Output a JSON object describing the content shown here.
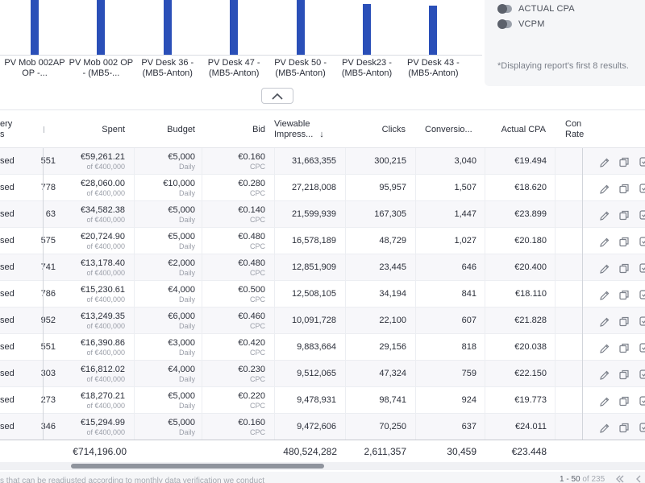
{
  "chart": {
    "bars": [
      {
        "label": "PV Mob 002AP OP -...",
        "value": 1.0
      },
      {
        "label": "PV Mob 002 OP - (MB5-...",
        "value": 1.0
      },
      {
        "label": "PV Desk 36 - (MB5-Anton)",
        "value": 1.0
      },
      {
        "label": "PV Desk 47 - (MB5-Anton)",
        "value": 1.0
      },
      {
        "label": "PV Desk 50 - (MB5-Anton)",
        "value": 1.0
      },
      {
        "label": "PV Desk23 - (MB5-Anton)",
        "value": 0.93
      },
      {
        "label": "PV Desk 43 - (MB5-Anton)",
        "value": 0.9
      }
    ],
    "bar_color": "#2a4fb8"
  },
  "side_panel": {
    "toggles": [
      {
        "label": "ACTUAL CPA",
        "on": false
      },
      {
        "label": "VCPM",
        "on": false
      }
    ],
    "note": "*Displaying report's first 8 results."
  },
  "table": {
    "headers": {
      "delivery": "ery\ns",
      "spent": "Spent",
      "budget": "Budget",
      "bid": "Bid",
      "viewable_line1": "Viewable",
      "viewable_line2": "Impress...",
      "sort_arrow": "↓",
      "clicks": "Clicks",
      "conversions": "Conversio...",
      "actual_cpa": "Actual CPA",
      "conv_rate_line1": "Con",
      "conv_rate_line2": "Rate"
    },
    "rows": [
      {
        "status": "sed",
        "id": "551",
        "spent": "€59,261.21",
        "spent_of": "of €400,000",
        "budget": "€5,000",
        "budget_type": "Daily",
        "bid": "€0.160",
        "bid_type": "CPC",
        "viewable": "31,663,355",
        "clicks": "300,215",
        "conversions": "3,040",
        "cpa": "€19.494"
      },
      {
        "status": "sed",
        "id": "778",
        "spent": "€28,060.00",
        "spent_of": "of €400,000",
        "budget": "€10,000",
        "budget_type": "Daily",
        "bid": "€0.280",
        "bid_type": "CPC",
        "viewable": "27,218,008",
        "clicks": "95,957",
        "conversions": "1,507",
        "cpa": "€18.620"
      },
      {
        "status": "sed",
        "id": "63",
        "spent": "€34,582.38",
        "spent_of": "of €400,000",
        "budget": "€5,000",
        "budget_type": "Daily",
        "bid": "€0.140",
        "bid_type": "CPC",
        "viewable": "21,599,939",
        "clicks": "167,305",
        "conversions": "1,447",
        "cpa": "€23.899"
      },
      {
        "status": "sed",
        "id": "575",
        "spent": "€20,724.90",
        "spent_of": "of €400,000",
        "budget": "€5,000",
        "budget_type": "Daily",
        "bid": "€0.480",
        "bid_type": "CPC",
        "viewable": "16,578,189",
        "clicks": "48,729",
        "conversions": "1,027",
        "cpa": "€20.180"
      },
      {
        "status": "sed",
        "id": "741",
        "spent": "€13,178.40",
        "spent_of": "of €400,000",
        "budget": "€2,000",
        "budget_type": "Daily",
        "bid": "€0.480",
        "bid_type": "CPC",
        "viewable": "12,851,909",
        "clicks": "23,445",
        "conversions": "646",
        "cpa": "€20.400"
      },
      {
        "status": "sed",
        "id": "786",
        "spent": "€15,230.61",
        "spent_of": "of €400,000",
        "budget": "€4,000",
        "budget_type": "Daily",
        "bid": "€0.500",
        "bid_type": "CPC",
        "viewable": "12,508,105",
        "clicks": "34,194",
        "conversions": "841",
        "cpa": "€18.110"
      },
      {
        "status": "sed",
        "id": "952",
        "spent": "€13,249.35",
        "spent_of": "of €400,000",
        "budget": "€6,000",
        "budget_type": "Daily",
        "bid": "€0.460",
        "bid_type": "CPC",
        "viewable": "10,091,728",
        "clicks": "22,100",
        "conversions": "607",
        "cpa": "€21.828"
      },
      {
        "status": "sed",
        "id": "551",
        "spent": "€16,390.86",
        "spent_of": "of €400,000",
        "budget": "€3,000",
        "budget_type": "Daily",
        "bid": "€0.420",
        "bid_type": "CPC",
        "viewable": "9,883,664",
        "clicks": "29,156",
        "conversions": "818",
        "cpa": "€20.038"
      },
      {
        "status": "sed",
        "id": "303",
        "spent": "€16,812.02",
        "spent_of": "of €400,000",
        "budget": "€4,000",
        "budget_type": "Daily",
        "bid": "€0.230",
        "bid_type": "CPC",
        "viewable": "9,512,065",
        "clicks": "47,324",
        "conversions": "759",
        "cpa": "€22.150"
      },
      {
        "status": "sed",
        "id": "273",
        "spent": "€18,270.21",
        "spent_of": "of €400,000",
        "budget": "€5,000",
        "budget_type": "Daily",
        "bid": "€0.220",
        "bid_type": "CPC",
        "viewable": "9,478,931",
        "clicks": "98,741",
        "conversions": "924",
        "cpa": "€19.773"
      },
      {
        "status": "sed",
        "id": "346",
        "spent": "€15,294.99",
        "spent_of": "of €400,000",
        "budget": "€5,000",
        "budget_type": "Daily",
        "bid": "€0.160",
        "bid_type": "CPC",
        "viewable": "9,472,606",
        "clicks": "70,250",
        "conversions": "637",
        "cpa": "€24.011"
      }
    ],
    "totals": {
      "spent": "€714,196.00",
      "viewable": "480,524,282",
      "clicks": "2,611,357",
      "conversions": "30,459",
      "cpa": "€23.448"
    },
    "row_icons": [
      "pencil-icon",
      "copy-icon",
      "checkbox-icon"
    ]
  },
  "footer": {
    "note": "s that can be readjusted according to monthly data verification we conduct",
    "page_range": "1 - 50",
    "page_of": " of 235"
  }
}
